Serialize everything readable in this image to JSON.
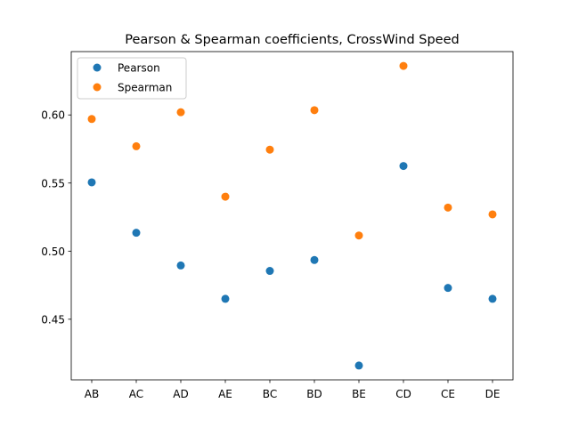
{
  "chart_data": {
    "type": "scatter",
    "title": "Pearson & Spearman coefficients, CrossWind Speed",
    "xlabel": "",
    "ylabel": "",
    "categories": [
      "AB",
      "AC",
      "AD",
      "AE",
      "BC",
      "BD",
      "BE",
      "CD",
      "CE",
      "DE"
    ],
    "yticks": [
      0.45,
      0.5,
      0.55,
      0.6
    ],
    "ytick_labels": [
      "0.45",
      "0.50",
      "0.55",
      "0.60"
    ],
    "ylim": [
      0.4055,
      0.6465
    ],
    "grid": false,
    "legend_position": "upper-left",
    "series": [
      {
        "name": "Pearson",
        "color": "#1f77b4",
        "values": [
          0.5505,
          0.5135,
          0.4895,
          0.465,
          0.4855,
          0.4935,
          0.416,
          0.5625,
          0.473,
          0.465
        ]
      },
      {
        "name": "Spearman",
        "color": "#ff7f0e",
        "values": [
          0.597,
          0.577,
          0.602,
          0.54,
          0.5745,
          0.6035,
          0.5115,
          0.636,
          0.532,
          0.527
        ]
      }
    ]
  }
}
